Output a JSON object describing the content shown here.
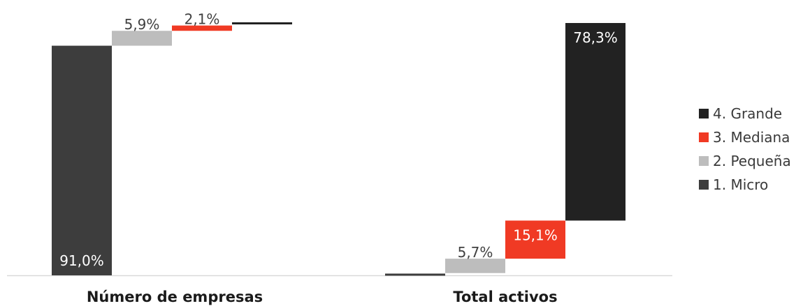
{
  "colors": {
    "micro": "#3d3d3d",
    "pequena": "#bdbdbd",
    "mediana": "#f03a24",
    "grande": "#222222",
    "axis": "#d9d9d9",
    "label_dark": "#404040",
    "label_light": "#ffffff"
  },
  "chart_data": {
    "type": "bar",
    "subtype": "stacked-waterfall",
    "categories": [
      "Número de empresas",
      "Total activos"
    ],
    "series": [
      {
        "name": "1. Micro",
        "values": [
          91.0,
          0.9
        ],
        "labels": [
          "91,0%",
          ""
        ]
      },
      {
        "name": "2. Pequeña",
        "values": [
          5.9,
          5.7
        ],
        "labels": [
          "5,9%",
          "5,7%"
        ]
      },
      {
        "name": "3. Mediana",
        "values": [
          2.1,
          15.1
        ],
        "labels": [
          "2,1%",
          "15,1%"
        ]
      },
      {
        "name": "4. Grande",
        "values": [
          1.0,
          78.3
        ],
        "labels": [
          "",
          "78,3%"
        ]
      }
    ],
    "ylim": [
      0,
      100
    ],
    "grid": false,
    "legend_position": "right",
    "legend_order": [
      "4. Grande",
      "3. Mediana",
      "2. Pequeña",
      "1. Micro"
    ]
  }
}
